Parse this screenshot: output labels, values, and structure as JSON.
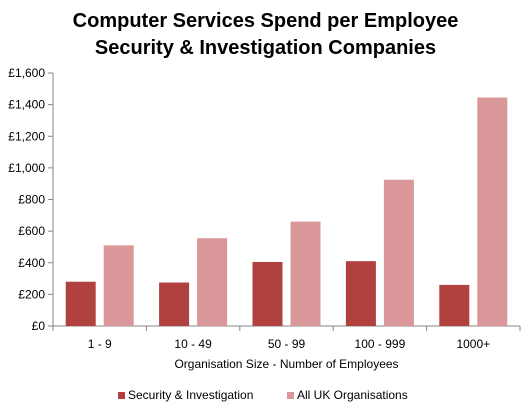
{
  "chart_data": {
    "type": "bar",
    "title_lines": [
      "Computer Services Spend per Employee",
      "Security & Investigation Companies"
    ],
    "xlabel": "Organisation Size - Number of Employees",
    "ylabel": "",
    "categories": [
      "1 - 9",
      "10 - 49",
      "50 - 99",
      "100 - 999",
      "1000+"
    ],
    "series": [
      {
        "name": "Security & Investigation",
        "color": "#b0413e",
        "values": [
          280,
          275,
          405,
          410,
          260
        ]
      },
      {
        "name": "All UK Organisations",
        "color": "#d9979a",
        "values": [
          510,
          555,
          660,
          925,
          1445
        ]
      }
    ],
    "ylim": [
      0,
      1600
    ],
    "y_ticks": [
      {
        "value": 0,
        "label": "£0"
      },
      {
        "value": 200,
        "label": "£200"
      },
      {
        "value": 400,
        "label": "£400"
      },
      {
        "value": 600,
        "label": "£600"
      },
      {
        "value": 800,
        "label": "£800"
      },
      {
        "value": 1000,
        "label": "£1,000"
      },
      {
        "value": 1200,
        "label": "£1,200"
      },
      {
        "value": 1400,
        "label": "£1,400"
      },
      {
        "value": 1600,
        "label": "£1,600"
      }
    ],
    "grid": false,
    "legend_position": "bottom"
  }
}
